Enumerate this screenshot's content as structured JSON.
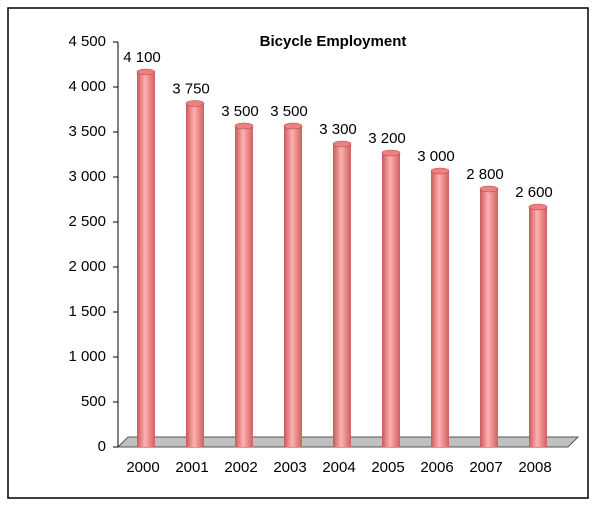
{
  "chart_data": {
    "type": "bar",
    "title": "Bicycle Employment",
    "categories": [
      "2000",
      "2001",
      "2002",
      "2003",
      "2004",
      "2005",
      "2006",
      "2007",
      "2008"
    ],
    "values": [
      4100,
      3750,
      3500,
      3500,
      3300,
      3200,
      3000,
      2800,
      2600
    ],
    "value_labels": [
      "4 100",
      "3 750",
      "3 500",
      "3 500",
      "3 300",
      "3 200",
      "3 000",
      "2 800",
      "2 600"
    ],
    "color": "#f08080",
    "ylim": [
      0,
      4500
    ],
    "yticks": [
      0,
      500,
      {
        "value": 1000,
        "label": "1 000"
      },
      {
        "value": 1500,
        "label": "1 500"
      },
      {
        "value": 2000,
        "label": "2 000"
      },
      {
        "value": 2500,
        "label": "2 500"
      },
      {
        "value": 3000,
        "label": "3 000"
      },
      {
        "value": 3500,
        "label": "3 500"
      },
      {
        "value": 4000,
        "label": "4 000"
      },
      {
        "value": 4500,
        "label": "4 500"
      }
    ]
  }
}
